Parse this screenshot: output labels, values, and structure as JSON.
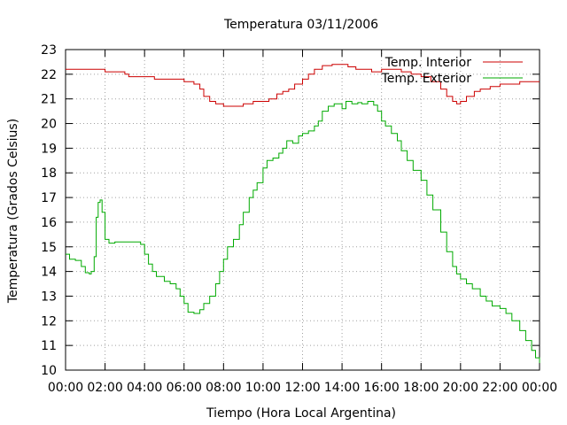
{
  "chart_data": {
    "type": "line",
    "title": "Temperatura 03/11/2006",
    "xlabel": "Tiempo (Hora Local Argentina)",
    "ylabel": "Temperatura (Grados Celsius)",
    "xlim": [
      0,
      24
    ],
    "ylim": [
      10,
      23
    ],
    "grid": true,
    "legend_position": "top-right",
    "x_tick_labels": [
      "00:00",
      "02:00",
      "04:00",
      "06:00",
      "08:00",
      "10:00",
      "12:00",
      "14:00",
      "16:00",
      "18:00",
      "20:00",
      "22:00",
      "00:00"
    ],
    "y_ticks": [
      10,
      11,
      12,
      13,
      14,
      15,
      16,
      17,
      18,
      19,
      20,
      21,
      22,
      23
    ],
    "series": [
      {
        "name": "Temp. Interior",
        "color": "#cc0000",
        "points": [
          [
            0.0,
            22.2
          ],
          [
            0.5,
            22.2
          ],
          [
            1.0,
            22.2
          ],
          [
            1.5,
            22.2
          ],
          [
            2.0,
            22.1
          ],
          [
            2.5,
            22.1
          ],
          [
            3.0,
            22.0
          ],
          [
            3.2,
            21.9
          ],
          [
            3.5,
            21.9
          ],
          [
            4.0,
            21.9
          ],
          [
            4.5,
            21.8
          ],
          [
            5.0,
            21.8
          ],
          [
            5.5,
            21.8
          ],
          [
            6.0,
            21.7
          ],
          [
            6.5,
            21.6
          ],
          [
            6.8,
            21.4
          ],
          [
            7.0,
            21.1
          ],
          [
            7.3,
            20.9
          ],
          [
            7.6,
            20.8
          ],
          [
            8.0,
            20.7
          ],
          [
            8.5,
            20.7
          ],
          [
            9.0,
            20.8
          ],
          [
            9.5,
            20.9
          ],
          [
            10.0,
            20.9
          ],
          [
            10.3,
            21.0
          ],
          [
            10.7,
            21.2
          ],
          [
            11.0,
            21.3
          ],
          [
            11.3,
            21.4
          ],
          [
            11.6,
            21.6
          ],
          [
            12.0,
            21.8
          ],
          [
            12.3,
            22.0
          ],
          [
            12.6,
            22.2
          ],
          [
            13.0,
            22.35
          ],
          [
            13.5,
            22.4
          ],
          [
            14.0,
            22.4
          ],
          [
            14.3,
            22.3
          ],
          [
            14.7,
            22.2
          ],
          [
            15.0,
            22.2
          ],
          [
            15.5,
            22.1
          ],
          [
            16.0,
            22.2
          ],
          [
            16.5,
            22.2
          ],
          [
            17.0,
            22.1
          ],
          [
            17.5,
            22.0
          ],
          [
            18.0,
            21.9
          ],
          [
            18.5,
            21.7
          ],
          [
            19.0,
            21.4
          ],
          [
            19.3,
            21.1
          ],
          [
            19.6,
            20.9
          ],
          [
            19.8,
            20.8
          ],
          [
            20.0,
            20.9
          ],
          [
            20.3,
            21.1
          ],
          [
            20.7,
            21.3
          ],
          [
            21.0,
            21.4
          ],
          [
            21.5,
            21.5
          ],
          [
            22.0,
            21.6
          ],
          [
            22.5,
            21.6
          ],
          [
            23.0,
            21.7
          ],
          [
            23.5,
            21.7
          ],
          [
            24.0,
            21.7
          ]
        ]
      },
      {
        "name": "Temp. Exterior",
        "color": "#00aa00",
        "points": [
          [
            0.0,
            14.7
          ],
          [
            0.2,
            14.5
          ],
          [
            0.5,
            14.45
          ],
          [
            0.8,
            14.2
          ],
          [
            1.0,
            13.95
          ],
          [
            1.2,
            13.9
          ],
          [
            1.3,
            14.0
          ],
          [
            1.45,
            14.6
          ],
          [
            1.55,
            16.2
          ],
          [
            1.65,
            16.8
          ],
          [
            1.75,
            16.9
          ],
          [
            1.85,
            16.4
          ],
          [
            2.0,
            15.3
          ],
          [
            2.2,
            15.15
          ],
          [
            2.5,
            15.2
          ],
          [
            3.0,
            15.2
          ],
          [
            3.5,
            15.2
          ],
          [
            3.8,
            15.1
          ],
          [
            4.0,
            14.7
          ],
          [
            4.2,
            14.3
          ],
          [
            4.4,
            14.0
          ],
          [
            4.6,
            13.8
          ],
          [
            5.0,
            13.6
          ],
          [
            5.3,
            13.5
          ],
          [
            5.6,
            13.3
          ],
          [
            5.8,
            13.0
          ],
          [
            6.0,
            12.7
          ],
          [
            6.2,
            12.35
          ],
          [
            6.5,
            12.3
          ],
          [
            6.8,
            12.45
          ],
          [
            7.0,
            12.7
          ],
          [
            7.3,
            13.0
          ],
          [
            7.6,
            13.5
          ],
          [
            7.8,
            14.0
          ],
          [
            8.0,
            14.5
          ],
          [
            8.2,
            15.0
          ],
          [
            8.5,
            15.3
          ],
          [
            8.8,
            15.9
          ],
          [
            9.0,
            16.4
          ],
          [
            9.3,
            17.0
          ],
          [
            9.5,
            17.3
          ],
          [
            9.7,
            17.6
          ],
          [
            10.0,
            18.2
          ],
          [
            10.2,
            18.5
          ],
          [
            10.5,
            18.6
          ],
          [
            10.8,
            18.8
          ],
          [
            11.0,
            19.0
          ],
          [
            11.2,
            19.3
          ],
          [
            11.5,
            19.2
          ],
          [
            11.8,
            19.5
          ],
          [
            12.0,
            19.6
          ],
          [
            12.3,
            19.7
          ],
          [
            12.6,
            19.9
          ],
          [
            12.8,
            20.1
          ],
          [
            13.0,
            20.5
          ],
          [
            13.3,
            20.7
          ],
          [
            13.6,
            20.8
          ],
          [
            14.0,
            20.6
          ],
          [
            14.2,
            20.9
          ],
          [
            14.5,
            20.8
          ],
          [
            14.8,
            20.85
          ],
          [
            15.0,
            20.8
          ],
          [
            15.3,
            20.9
          ],
          [
            15.6,
            20.75
          ],
          [
            15.8,
            20.5
          ],
          [
            16.0,
            20.1
          ],
          [
            16.2,
            19.9
          ],
          [
            16.5,
            19.6
          ],
          [
            16.8,
            19.3
          ],
          [
            17.0,
            18.9
          ],
          [
            17.3,
            18.5
          ],
          [
            17.6,
            18.1
          ],
          [
            18.0,
            17.7
          ],
          [
            18.3,
            17.1
          ],
          [
            18.6,
            16.5
          ],
          [
            19.0,
            15.6
          ],
          [
            19.3,
            14.8
          ],
          [
            19.6,
            14.2
          ],
          [
            19.8,
            13.9
          ],
          [
            20.0,
            13.7
          ],
          [
            20.3,
            13.5
          ],
          [
            20.6,
            13.3
          ],
          [
            21.0,
            13.0
          ],
          [
            21.3,
            12.8
          ],
          [
            21.6,
            12.6
          ],
          [
            22.0,
            12.5
          ],
          [
            22.3,
            12.3
          ],
          [
            22.6,
            12.0
          ],
          [
            23.0,
            11.6
          ],
          [
            23.3,
            11.2
          ],
          [
            23.6,
            10.8
          ],
          [
            23.8,
            10.5
          ],
          [
            24.0,
            10.15
          ]
        ]
      }
    ]
  }
}
